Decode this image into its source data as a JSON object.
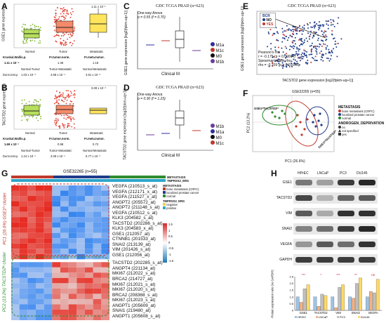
{
  "panels": {
    "A": {
      "label": "A",
      "ylabel": "GSE1 gene expression",
      "groups": [
        "Normal",
        "Tumor",
        "Metastatic"
      ],
      "annot": "1.11 x 10⁻¹",
      "table_header": [
        "Kruskal.Wallis.p.",
        "Fr.tumor.norm.",
        "Fr.meta.tumor."
      ],
      "table_vals": [
        "1.11 x 10⁻⁴",
        "1.36",
        "1.18"
      ],
      "table_sub": [
        "",
        "Normal-Tumor",
        "Tumor-Metastatic",
        "Normal-Metastatic"
      ],
      "dunn_label": "Dunn.test.p",
      "dunn_vals": [
        "1.03 x 10⁻³",
        "4.68 x 10⁻¹",
        "3.91 x 10⁻²"
      ],
      "yticks": [
        "0",
        "5000",
        "10000",
        "15000",
        "20000",
        "25000"
      ]
    },
    "B": {
      "label": "B",
      "ylabel": "TACSTD2 gene expression",
      "groups": [
        "Normal",
        "Tumor",
        "Metastatic"
      ],
      "annot": "3.09 x 10⁻²",
      "table_header": [
        "Kruskal.Wallis.p.",
        "Fr.tumor.norm.",
        "Fr.meta.tumor."
      ],
      "table_vals": [
        "1.69 x 10⁻¹",
        "0.98",
        "0.72"
      ],
      "table_sub": [
        "",
        "Normal-Tumor",
        "Tumor-Metastatic",
        "Normal-Metastatic"
      ],
      "dunn_label": "Dunn.test.p",
      "dunn_vals": [
        "1.24 x 10⁻¹",
        "3.09 x 10⁻¹",
        "5.77 x 10⁻²"
      ],
      "yticks": [
        "0",
        "2000",
        "4000",
        "6000",
        "8000",
        "10000"
      ]
    },
    "C": {
      "label": "C",
      "title": "GDC TCGA PRAD (n=623)",
      "stat1": "One-way Anova",
      "stat2": "p = 0.55 (f = 0.70)",
      "ylabel": "GSE1 gene expression [log2(fpkm-uq+1)]",
      "xlabel": "Clinical M",
      "legend": [
        "M1a",
        "M1c",
        "M0",
        "M1b"
      ],
      "legend_colors": [
        "#2f2f9a",
        "#c0392b",
        "#111111",
        "#6a3d9a"
      ]
    },
    "D": {
      "label": "D",
      "title": "GDC TCGA PRAD (n=623)",
      "stat1": "One-way Anova",
      "stat2": "p = 0.30 (f = 1.23)",
      "ylabel": "TACSTD2 gene expression [log2(fpkm-uq+1)]",
      "xlabel": "Clinical M",
      "legend": [
        "M1b",
        "M1a",
        "M0",
        "M1c"
      ],
      "legend_colors": [
        "#6a3d9a",
        "#2f2f9a",
        "#111111",
        "#c0392b"
      ]
    },
    "E": {
      "label": "E",
      "title": "GDC TCGA PRAD (n=623)",
      "legend_title": "BCR",
      "legend": [
        "NO",
        "YES"
      ],
      "stats": [
        "Pearson's rho",
        "r = -0.175 (p = 0.00004)",
        "Spearman's rank rho",
        "rho = -0.109 (p = 0.01035)"
      ],
      "xlabel": "TACSTD2 gene expression [log2(fpkm-uq+1)]",
      "ylabel": "GSE1 gene expression [log2(fpkm-uq+1)]"
    },
    "F": {
      "label": "F",
      "title": "GSE32265 (n=55)",
      "xlabel": "PC1 (26.6%)",
      "ylabel": "PC2 (13.2%)",
      "ellipse_labels": [
        "GSE1ʰⁱTACSTD2ʰⁱ",
        "GSE1ˡᵒTACSTD2ˡᵒ"
      ],
      "legend_metastasis_title": "METASTASIS",
      "legend_metastasis": [
        "bone metastasis (CRPC)",
        "localized prostate cancer",
        "normal"
      ],
      "legend_androgen_title": "ANDROGEN_DEPRIVATION",
      "legend_androgen": [
        "no",
        "not specified",
        "yes"
      ]
    },
    "G": {
      "label": "G",
      "title": "GSE32265 (n=55)",
      "top_labels": [
        "METASTASIS",
        "TMPRSS2_ERG"
      ],
      "side_top": "PC1 (26.6%) GSE1ʰⁱ cluster",
      "side_bottom": "PC2 (13.2%) TACSTD2ʰⁱ cluster",
      "legend_meta_title": "METASTASIS",
      "legend_meta": [
        "bone metastasis (CRPC)",
        "localized prostate cancer",
        "normal"
      ],
      "legend_tmp_title": "TMPRSS2_ERG",
      "legend_tmp": [
        "negative",
        "positive"
      ],
      "scale": [
        "1.5",
        "1",
        "0.5",
        "0",
        "-0.5",
        "-1",
        "-1.5"
      ],
      "genes_top": [
        "VEGFA (210513_s_at)",
        "VEGFA (212171_x_at)",
        "VEGFA (211527_x_at)",
        "ANGPT2 (205572_at)",
        "ANGPT2 (211148_s_at)",
        "VEGFA (210512_s_at)",
        "KLK3 (204582_s_at)",
        "TACSTD2 (202286_s_at)",
        "KLK3 (204583_x_at)",
        "GSE1 (212057_at)",
        "CTNNB1 (201533_at)",
        "SNAI2 (213139_at)",
        "VIM (201426_s_at)",
        "GSE1 (212056_at)"
      ],
      "genes_bottom": [
        "TACSTD2 (202285_s_at)",
        "ANGPT4 (221134_at)",
        "MKI67 (212022_s_at)",
        "BRCA2 (214727_at)",
        "MKI67 (212021_s_at)",
        "MKI67 (212020_s_at)",
        "BRCA2 (208368_s_at)",
        "MKI67 (212023_s_at)",
        "ANGPT1 (205609_at)",
        "SNAI1 (219480_at)",
        "ANGPT1 (205608_s_at)"
      ]
    },
    "H": {
      "label": "H",
      "cols": [
        "HPrEC",
        "LNCaP",
        "PC3",
        "DU145"
      ],
      "rows": [
        "GSE1",
        "TACSTD2",
        "VIM",
        "SNAI2",
        "VEGFA",
        "GAPDH"
      ],
      "bar_ylabel": "Protein expression ratio (vs GAPDH)",
      "bar_groups": [
        "GSE1",
        "TACSTD2",
        "VIM",
        "SNAI2",
        "VEGFA"
      ],
      "bar_legend": [
        "HPrEC",
        "LNCaP",
        "PC3",
        "DU145"
      ],
      "bar_colors": [
        "#9cc3e6",
        "#f4b183",
        "#bfbfbf",
        "#ffd966"
      ],
      "bar_yticks": [
        "0",
        "0.5",
        "1.0",
        "1.5",
        "2.0",
        "2.5"
      ],
      "sig": [
        "***",
        "*",
        "***",
        "**",
        "ns"
      ]
    }
  },
  "chart_data": {
    "type": "bar",
    "title": "",
    "categories": [
      "GSE1",
      "TACSTD2",
      "VIM",
      "SNAI2",
      "VEGFA"
    ],
    "series": [
      {
        "name": "HPrEC",
        "values": [
          1.0,
          1.0,
          1.0,
          1.0,
          1.0
        ]
      },
      {
        "name": "LNCaP",
        "values": [
          0.6,
          0.3,
          0.2,
          0.9,
          1.4
        ]
      },
      {
        "name": "PC3",
        "values": [
          1.6,
          1.2,
          1.7,
          2.0,
          1.3
        ]
      },
      {
        "name": "DU145",
        "values": [
          1.9,
          1.1,
          1.9,
          2.4,
          2.3
        ]
      }
    ],
    "ylim": [
      0,
      2.5
    ]
  }
}
